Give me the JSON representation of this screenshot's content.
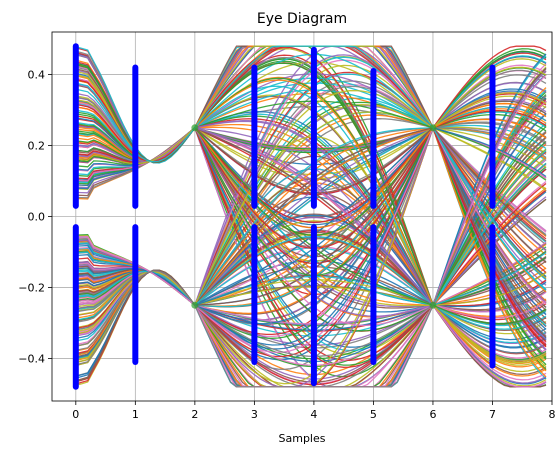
{
  "chart_data": {
    "type": "line",
    "title": "Eye Diagram",
    "xlabel": "Samples",
    "ylabel": "",
    "xlim": [
      -0.4,
      8.0
    ],
    "ylim": [
      -0.52,
      0.52
    ],
    "xticks": [
      0,
      1,
      2,
      3,
      4,
      5,
      6,
      7,
      8
    ],
    "xtick_labels": [
      "0",
      "1",
      "2",
      "3",
      "4",
      "5",
      "6",
      "7",
      "8"
    ],
    "yticks": [
      -0.4,
      -0.2,
      0.0,
      0.2,
      0.4
    ],
    "ytick_labels": [
      "−0.4",
      "−0.2",
      "0.0",
      "0.2",
      "0.4"
    ],
    "grid": true,
    "trace_x_span": [
      0,
      7.9
    ],
    "crossing_points": [
      {
        "x": 2,
        "y": 0.25
      },
      {
        "x": 2,
        "y": -0.25
      },
      {
        "x": 6,
        "y": 0.25
      },
      {
        "x": 6,
        "y": -0.25
      }
    ],
    "sample_columns": [
      {
        "x": 0,
        "y_upper": [
          0.03,
          0.48
        ],
        "y_lower": [
          -0.48,
          -0.03
        ]
      },
      {
        "x": 1,
        "y_upper": [
          0.03,
          0.42
        ],
        "y_lower": [
          -0.41,
          -0.03
        ]
      },
      {
        "x": 3,
        "y_upper": [
          0.03,
          0.42
        ],
        "y_lower": [
          -0.41,
          -0.03
        ]
      },
      {
        "x": 4,
        "y_upper": [
          0.03,
          0.47
        ],
        "y_lower": [
          -0.47,
          -0.03
        ]
      },
      {
        "x": 5,
        "y_upper": [
          0.03,
          0.41
        ],
        "y_lower": [
          -0.41,
          -0.03
        ]
      },
      {
        "x": 7,
        "y_upper": [
          0.03,
          0.42
        ],
        "y_lower": [
          -0.42,
          -0.03
        ]
      }
    ],
    "sample_marker_color": "#0000ff",
    "series_palette": [
      "#1f77b4",
      "#ff7f0e",
      "#2ca02c",
      "#d62728",
      "#9467bd",
      "#8c564b",
      "#e377c2",
      "#7f7f7f",
      "#bcbd22",
      "#17becf"
    ]
  }
}
